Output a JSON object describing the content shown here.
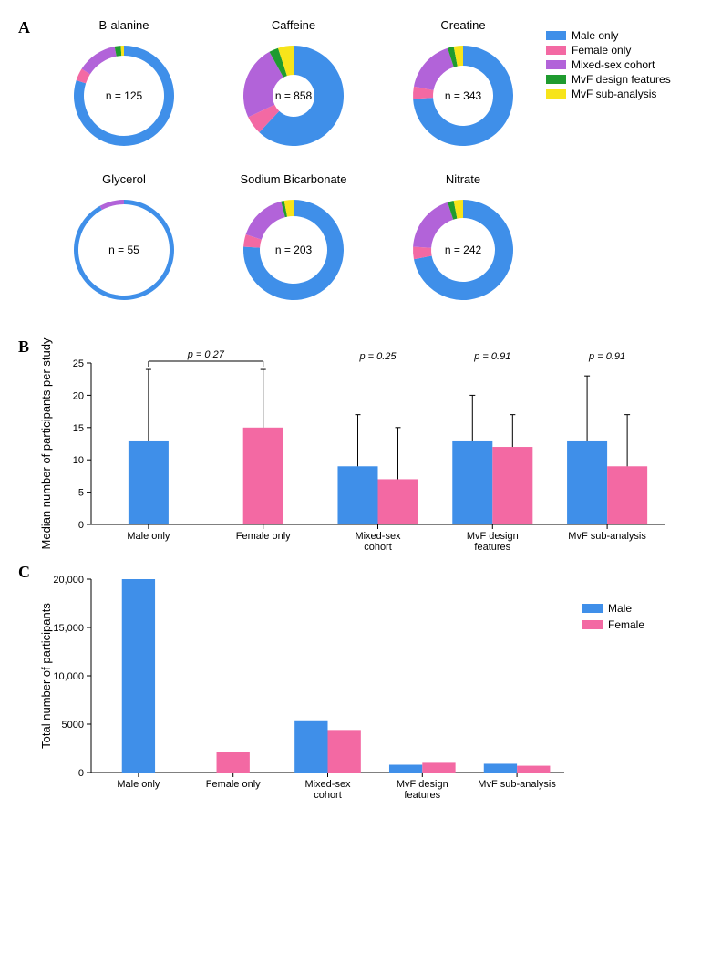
{
  "colors": {
    "male_only": "#3f8fe9",
    "female_only": "#f369a3",
    "mixed": "#b263d9",
    "mvf_design": "#1f9b2f",
    "mvf_sub": "#f7e41a",
    "male": "#3f8fe9",
    "female": "#f369a3",
    "axis": "#000000",
    "background": "#ffffff"
  },
  "fontsizes": {
    "panel_label": 18,
    "donut_title": 13,
    "donut_center": 12,
    "legend": 12,
    "axis_label": 13,
    "tick": 11,
    "pval": 11
  },
  "panelA": {
    "label": "A",
    "legend_title": null,
    "legend": [
      {
        "key": "male_only",
        "label": "Male only"
      },
      {
        "key": "female_only",
        "label": "Female only"
      },
      {
        "key": "mixed",
        "label": "Mixed-sex cohort"
      },
      {
        "key": "mvf_design",
        "label": "MvF design features"
      },
      {
        "key": "mvf_sub",
        "label": "MvF sub-analysis"
      }
    ],
    "donut": {
      "outer_r": 55,
      "segments": [
        "male_only",
        "female_only",
        "mixed",
        "mvf_design",
        "mvf_sub"
      ]
    },
    "charts": [
      {
        "title": "B-alanine",
        "n_label": "n = 125",
        "thickness": 11,
        "values": {
          "male_only": 80,
          "female_only": 4,
          "mixed": 13,
          "mvf_design": 2,
          "mvf_sub": 1
        }
      },
      {
        "title": "Caffeine",
        "n_label": "n = 858",
        "thickness": 32,
        "values": {
          "male_only": 62,
          "female_only": 6,
          "mixed": 24,
          "mvf_design": 3,
          "mvf_sub": 5
        }
      },
      {
        "title": "Creatine",
        "n_label": "n = 343",
        "thickness": 22,
        "values": {
          "male_only": 74,
          "female_only": 4,
          "mixed": 17,
          "mvf_design": 2,
          "mvf_sub": 3
        }
      },
      {
        "title": "Glycerol",
        "n_label": "n = 55",
        "thickness": 5,
        "values": {
          "male_only": 92,
          "female_only": 0,
          "mixed": 8,
          "mvf_design": 0,
          "mvf_sub": 0
        }
      },
      {
        "title": "Sodium Bicarbonate",
        "n_label": "n = 203",
        "thickness": 18,
        "values": {
          "male_only": 76,
          "female_only": 4,
          "mixed": 16,
          "mvf_design": 1,
          "mvf_sub": 3
        }
      },
      {
        "title": "Nitrate",
        "n_label": "n = 242",
        "thickness": 20,
        "values": {
          "male_only": 72,
          "female_only": 4,
          "mixed": 19,
          "mvf_design": 2,
          "mvf_sub": 3
        }
      }
    ]
  },
  "panelB": {
    "label": "B",
    "ylabel": "Median number of participants per study",
    "ylim": [
      0,
      25
    ],
    "ytick_step": 5,
    "bar_width": 0.35,
    "groups": [
      {
        "name": "Male only",
        "bars": [
          {
            "series": "male",
            "value": 13,
            "err": 11
          }
        ],
        "single": true
      },
      {
        "name": "Female only",
        "bars": [
          {
            "series": "female",
            "value": 15,
            "err": 9
          }
        ],
        "single": true
      },
      {
        "name": "Mixed-sex cohort",
        "bars": [
          {
            "series": "male",
            "value": 9,
            "err": 8
          },
          {
            "series": "female",
            "value": 7,
            "err": 8
          }
        ],
        "pval": "p = 0.25"
      },
      {
        "name": "MvF design features",
        "bars": [
          {
            "series": "male",
            "value": 13,
            "err": 7
          },
          {
            "series": "female",
            "value": 12,
            "err": 5
          }
        ],
        "pval": "p = 0.91"
      },
      {
        "name": "MvF sub-analysis",
        "bars": [
          {
            "series": "male",
            "value": 13,
            "err": 10
          },
          {
            "series": "female",
            "value": 9,
            "err": 8
          }
        ],
        "pval": "p = 0.91"
      }
    ],
    "pval_span_01": "p = 0.27",
    "cap_width": 6
  },
  "panelC": {
    "label": "C",
    "ylabel": "Total number of participants",
    "ylim": [
      0,
      20000
    ],
    "yticks": [
      0,
      5000,
      10000,
      15000,
      20000
    ],
    "ytick_labels": [
      "0",
      "5000",
      "10,000",
      "15,000",
      "20,000"
    ],
    "bar_width": 0.35,
    "legend": [
      {
        "key": "male",
        "label": "Male"
      },
      {
        "key": "female",
        "label": "Female"
      }
    ],
    "groups": [
      {
        "name": "Male only",
        "bars": [
          {
            "series": "male",
            "value": 20000
          }
        ]
      },
      {
        "name": "Female only",
        "bars": [
          {
            "series": "female",
            "value": 2100
          }
        ]
      },
      {
        "name": "Mixed-sex cohort",
        "bars": [
          {
            "series": "male",
            "value": 5400
          },
          {
            "series": "female",
            "value": 4400
          }
        ]
      },
      {
        "name": "MvF design features",
        "bars": [
          {
            "series": "male",
            "value": 800
          },
          {
            "series": "female",
            "value": 1000
          }
        ]
      },
      {
        "name": "MvF sub-analysis",
        "bars": [
          {
            "series": "male",
            "value": 900
          },
          {
            "series": "female",
            "value": 700
          }
        ]
      }
    ]
  }
}
